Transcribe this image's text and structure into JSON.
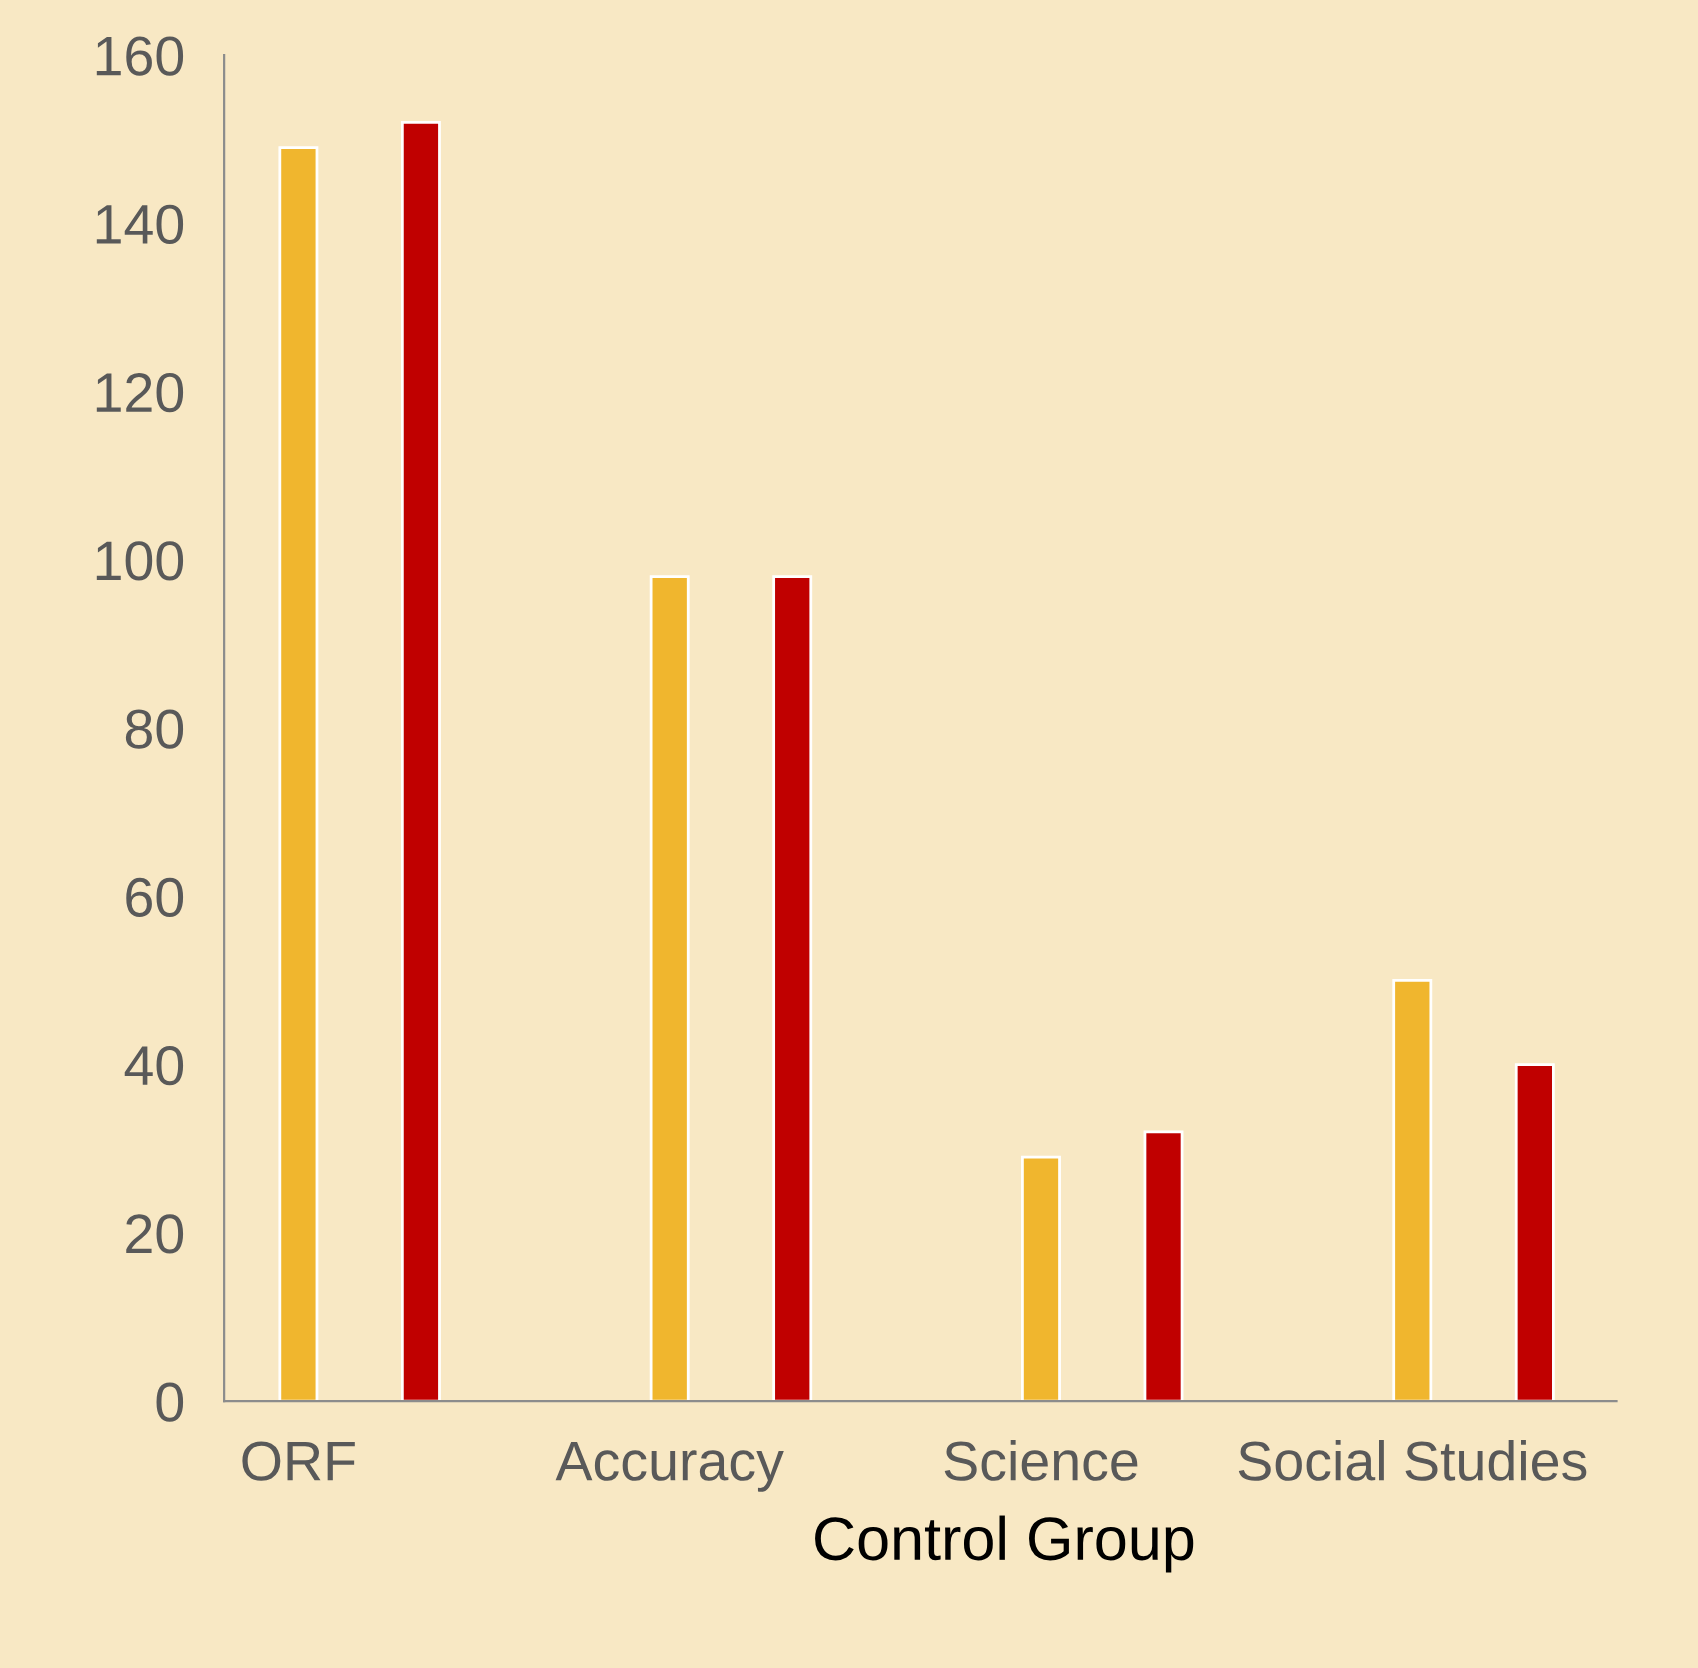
{
  "chart_data": {
    "type": "bar",
    "xlabel": "Control Group",
    "categories": [
      "ORF",
      "Accuracy",
      "Science",
      "Social Studies"
    ],
    "series": [
      {
        "color": "#f0b62e",
        "values": [
          149,
          98,
          29,
          50
        ]
      },
      {
        "color": "#c00000",
        "values": [
          152,
          98,
          32,
          40
        ]
      }
    ],
    "ylim": [
      0,
      160
    ],
    "yticks": [
      0,
      20,
      40,
      60,
      80,
      100,
      120,
      140,
      160
    ],
    "grid": false,
    "legend": false
  }
}
